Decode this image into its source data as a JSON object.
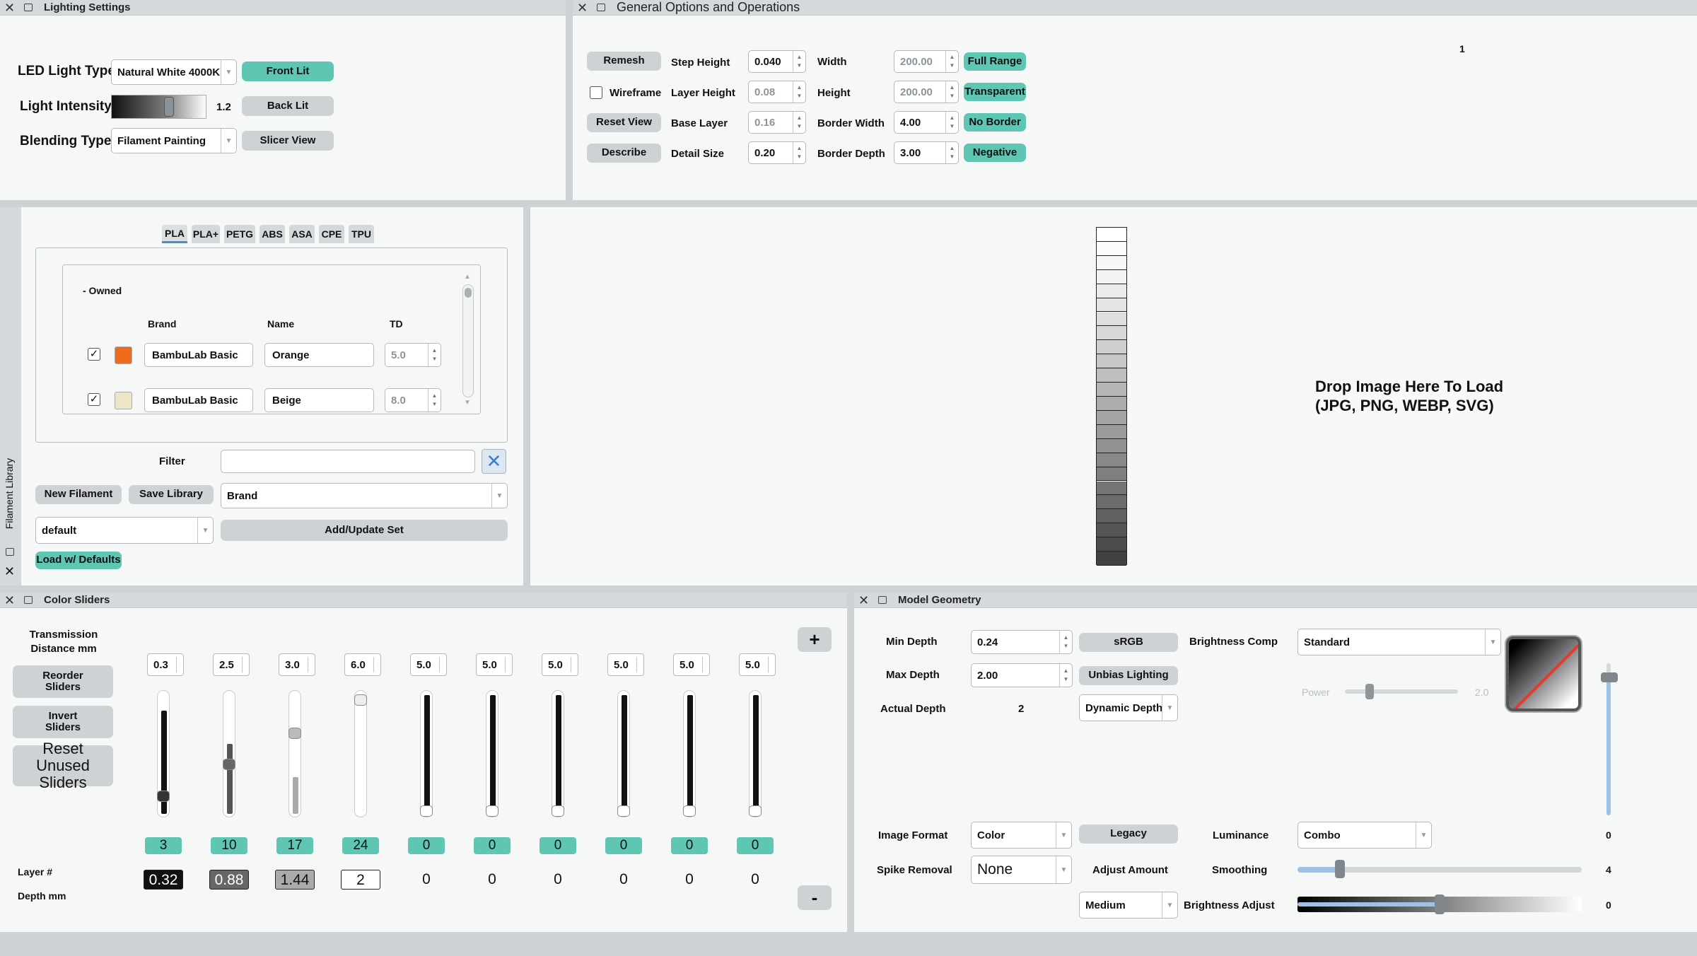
{
  "lighting": {
    "title": "Lighting Settings",
    "led_label": "LED Light Type",
    "led_value": "Natural White 4000K",
    "intensity_label": "Light Intensity",
    "intensity_value": "1.2",
    "intensity_level": 0.62,
    "blending_label": "Blending Type",
    "blending_value": "Filament Painting",
    "btn_front": "Front Lit",
    "btn_back": "Back Lit",
    "btn_slicer": "Slicer View"
  },
  "general": {
    "title": "General Options and Operations",
    "remesh": "Remesh",
    "wireframe": "Wireframe",
    "reset_view": "Reset View",
    "describe": "Describe",
    "step_height_label": "Step Height",
    "step_height": "0.040",
    "layer_height_label": "Layer Height",
    "layer_height": "0.08",
    "base_layer_label": "Base Layer",
    "base_layer": "0.16",
    "detail_size_label": "Detail Size",
    "detail_size": "0.20",
    "width_label": "Width",
    "width": "200.00",
    "height_label": "Height",
    "height": "200.00",
    "border_width_label": "Border Width",
    "border_width": "4.00",
    "border_depth_label": "Border Depth",
    "border_depth": "3.00",
    "full_range": "Full Range",
    "transparent": "Transparent",
    "no_border": "No Border",
    "negative": "Negative"
  },
  "library": {
    "side_title": "Filament Library",
    "tabs": [
      "PLA",
      "PLA+",
      "PETG",
      "ABS",
      "ASA",
      "CPE",
      "TPU"
    ],
    "group": "- Owned",
    "col_brand": "Brand",
    "col_name": "Name",
    "col_td": "TD",
    "rows": [
      {
        "brand": "BambuLab Basic",
        "name": "Orange",
        "td": "5.0",
        "color": "#f26b1d"
      },
      {
        "brand": "BambuLab Basic",
        "name": "Beige",
        "td": "8.0",
        "color": "#ece5c6"
      }
    ],
    "filter_label": "Filter",
    "filter_value": "",
    "new_filament": "New Filament",
    "save_library": "Save Library",
    "sort_value": "Brand",
    "set_value": "default",
    "add_update": "Add/Update Set",
    "load_defaults": "Load w/ Defaults"
  },
  "preview": {
    "drop_line1": "Drop Image Here To Load",
    "drop_line2": "(JPG, PNG, WEBP, SVG)"
  },
  "sliders": {
    "title": "Color Sliders",
    "trans_label": "Transmission Distance mm",
    "reorder": "Reorder Sliders",
    "invert": "Invert Sliders",
    "reset_unused": "Reset Unused Sliders",
    "layer_label": "Layer #",
    "depth_label": "Depth mm",
    "plus": "+",
    "minus": "-",
    "columns": [
      {
        "td": "0.3",
        "layer": "3",
        "depth": "0.32",
        "level": 0.13,
        "fill": "#111",
        "knob": "#333",
        "dbg": "#111",
        "dfg": "#fff"
      },
      {
        "td": "2.5",
        "layer": "10",
        "depth": "0.88",
        "level": 0.41,
        "fill": "#555",
        "knob": "#666",
        "dbg": "#666",
        "dfg": "#fff"
      },
      {
        "td": "3.0",
        "layer": "17",
        "depth": "1.44",
        "level": 0.69,
        "fill": "#aaa",
        "knob": "#bbb",
        "dbg": "#aaa",
        "dfg": "#111"
      },
      {
        "td": "6.0",
        "layer": "24",
        "depth": "2",
        "level": 0.98,
        "fill": "#fff",
        "knob": "#eee",
        "dbg": "#fff",
        "dfg": "#111"
      },
      {
        "td": "5.0",
        "layer": "0",
        "depth": "0",
        "level": 0.0,
        "fill": "#111",
        "knob": "#fff",
        "dbg": "transparent",
        "dfg": "#111"
      },
      {
        "td": "5.0",
        "layer": "0",
        "depth": "0",
        "level": 0.0,
        "fill": "#111",
        "knob": "#fff",
        "dbg": "transparent",
        "dfg": "#111"
      },
      {
        "td": "5.0",
        "layer": "0",
        "depth": "0",
        "level": 0.0,
        "fill": "#111",
        "knob": "#fff",
        "dbg": "transparent",
        "dfg": "#111"
      },
      {
        "td": "5.0",
        "layer": "0",
        "depth": "0",
        "level": 0.0,
        "fill": "#111",
        "knob": "#fff",
        "dbg": "transparent",
        "dfg": "#111"
      },
      {
        "td": "5.0",
        "layer": "0",
        "depth": "0",
        "level": 0.0,
        "fill": "#111",
        "knob": "#fff",
        "dbg": "transparent",
        "dfg": "#111"
      },
      {
        "td": "5.0",
        "layer": "0",
        "depth": "0",
        "level": 0.0,
        "fill": "#111",
        "knob": "#fff",
        "dbg": "transparent",
        "dfg": "#111"
      }
    ]
  },
  "geometry": {
    "title": "Model Geometry",
    "min_depth_label": "Min Depth",
    "min_depth": "0.24",
    "max_depth_label": "Max Depth",
    "max_depth": "2.00",
    "actual_depth_label": "Actual Depth",
    "actual_depth": "2",
    "srgb": "sRGB",
    "unbias": "Unbias Lighting",
    "dynamic_depth": "Dynamic Depth",
    "brightness_comp_label": "Brightness Comp",
    "brightness_comp": "Standard",
    "power_label": "Power",
    "power_value": "2.0",
    "power_level": 0.18,
    "curve_value": "1",
    "curve_level": 0.92,
    "image_format_label": "Image Format",
    "image_format": "Color",
    "legacy": "Legacy",
    "luminance_label": "Luminance",
    "luminance": "Combo",
    "luminance_value": "0",
    "spike_label": "Spike Removal",
    "spike": "None",
    "adjust_amount": "Adjust Amount",
    "adjust_value": "Medium",
    "smoothing_label": "Smoothing",
    "smoothing_value": "4",
    "smoothing_level": 0.15,
    "brightness_adj_label": "Brightness Adjust",
    "brightness_adj_value": "0",
    "brightness_adj_level": 0.5
  }
}
